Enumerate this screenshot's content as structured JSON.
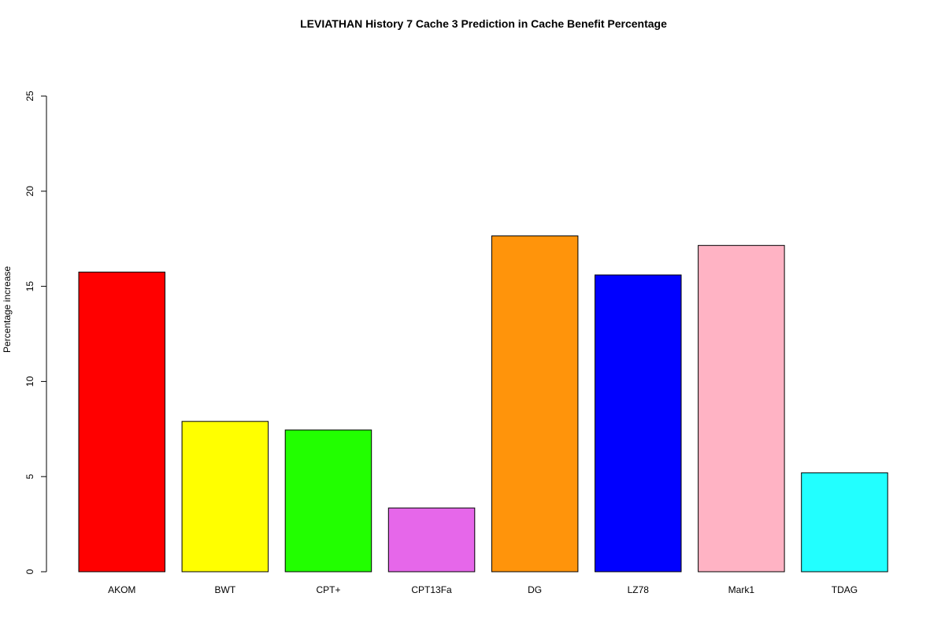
{
  "chart_data": {
    "type": "bar",
    "title": "LEVIATHAN  History  7  Cache  3 Prediction in Cache Benefit Percentage",
    "xlabel": "",
    "ylabel": "Percentage increase",
    "ylim": [
      0,
      25
    ],
    "yticks": [
      "0",
      "5",
      "10",
      "15",
      "20",
      "25"
    ],
    "categories": [
      "AKOM",
      "BWT",
      "CPT+",
      "CPT13Fa",
      "DG",
      "LZ78",
      "Mark1",
      "TDAG"
    ],
    "values": [
      15.75,
      7.9,
      7.45,
      3.35,
      17.65,
      15.6,
      17.15,
      5.2
    ],
    "colors": [
      "#FF0000",
      "#FFFF00",
      "#22FF00",
      "#E667EA",
      "#FF940B",
      "#0000FF",
      "#FFB3C4",
      "#22FFFF"
    ],
    "grid": false,
    "legend": "none"
  }
}
